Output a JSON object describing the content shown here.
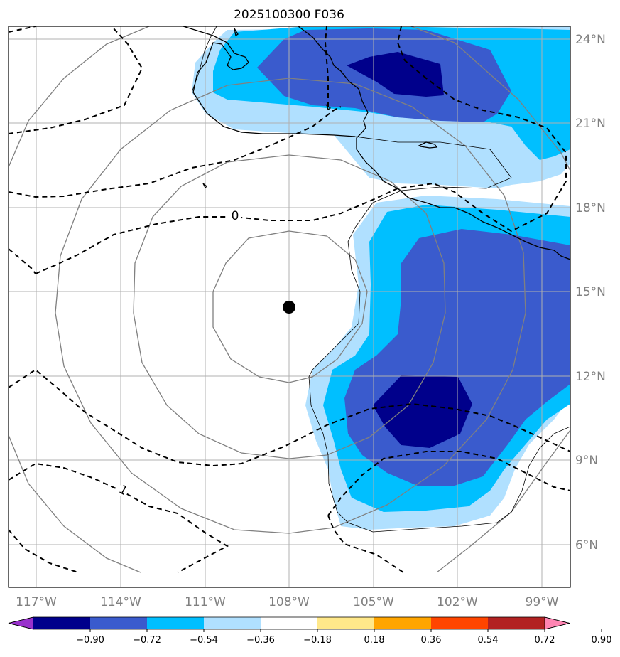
{
  "title": "2025100300 F036",
  "map": {
    "lon_range": [
      "118°W",
      "98°W"
    ],
    "lat_range": [
      "4.5°N",
      "24.5°N"
    ],
    "storm_center": {
      "lon": "108°W",
      "lat": "14.5°N"
    }
  },
  "lon_labels": [
    "117°W",
    "114°W",
    "111°W",
    "108°W",
    "105°W",
    "102°W",
    "99°W"
  ],
  "lat_labels": [
    "24°N",
    "21°N",
    "18°N",
    "15°N",
    "12°N",
    "9°N",
    "6°N"
  ],
  "contour_labels": [
    "0",
    "1"
  ],
  "colorbar": {
    "ticks": [
      "−0.90",
      "−0.72",
      "−0.54",
      "−0.36",
      "−0.18",
      "0.18",
      "0.36",
      "0.54",
      "0.72",
      "0.90"
    ],
    "colors": [
      "#9932cc",
      "#00008b",
      "#3a5bcd",
      "#00bfff",
      "#b0e0ff",
      "#ffffff",
      "#ffe88a",
      "#ffa500",
      "#ff4500",
      "#b22222",
      "#ff85b3"
    ]
  },
  "colors": {
    "grid": "#b0b0b0",
    "coast": "#000000",
    "circles": "#808080",
    "dashed": "#000000"
  }
}
